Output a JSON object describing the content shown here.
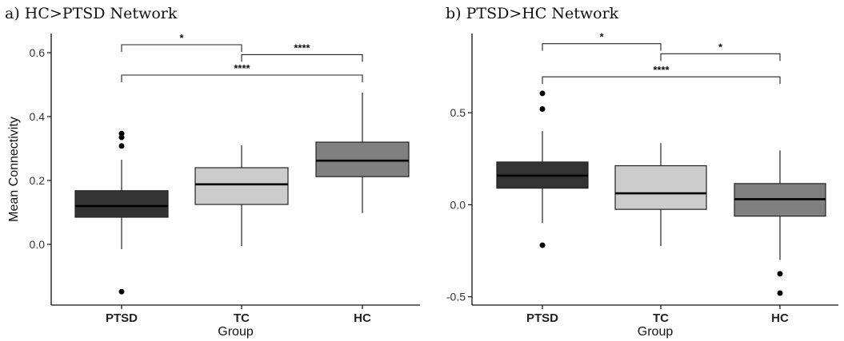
{
  "chart_data": [
    {
      "type": "boxplot",
      "title": "a) HC>PTSD Network",
      "xlabel": "Group",
      "ylabel": "Mean Connectivity",
      "categories": [
        "PTSD",
        "TC",
        "HC"
      ],
      "colors": [
        "#333333",
        "#cccccc",
        "#808080"
      ],
      "ylim": [
        -0.19,
        0.66
      ],
      "yticks": [
        0.0,
        0.2,
        0.4,
        0.6
      ],
      "ytick_labels": [
        "0.0",
        "0.2",
        "0.4",
        "0.6"
      ],
      "grid": false,
      "boxes": [
        {
          "group": "PTSD",
          "whisker_low": -0.015,
          "q1": 0.085,
          "median": 0.12,
          "q3": 0.168,
          "whisker_high": 0.265,
          "outliers": [
            -0.148,
            0.308,
            0.335,
            0.347
          ]
        },
        {
          "group": "TC",
          "whisker_low": -0.005,
          "q1": 0.125,
          "median": 0.188,
          "q3": 0.24,
          "whisker_high": 0.31,
          "outliers": []
        },
        {
          "group": "HC",
          "whisker_low": 0.098,
          "q1": 0.212,
          "median": 0.262,
          "q3": 0.32,
          "whisker_high": 0.475,
          "outliers": []
        }
      ],
      "significance": [
        {
          "from": "PTSD",
          "to": "TC",
          "y": 0.625,
          "label": "*"
        },
        {
          "from": "TC",
          "to": "HC",
          "y": 0.594,
          "label": "****"
        },
        {
          "from": "PTSD",
          "to": "HC",
          "y": 0.53,
          "label": "****"
        }
      ]
    },
    {
      "type": "boxplot",
      "title": "b) PTSD>HC Network",
      "xlabel": "Group",
      "ylabel": "",
      "categories": [
        "PTSD",
        "TC",
        "HC"
      ],
      "colors": [
        "#333333",
        "#cccccc",
        "#808080"
      ],
      "ylim": [
        -0.545,
        0.93
      ],
      "yticks": [
        -0.5,
        0.0,
        0.5
      ],
      "ytick_labels": [
        "-0.5",
        "0.0",
        "0.5"
      ],
      "grid": false,
      "boxes": [
        {
          "group": "PTSD",
          "whisker_low": -0.1,
          "q1": 0.09,
          "median": 0.158,
          "q3": 0.232,
          "whisker_high": 0.4,
          "outliers": [
            -0.22,
            0.52,
            0.605
          ]
        },
        {
          "group": "TC",
          "whisker_low": -0.225,
          "q1": -0.025,
          "median": 0.062,
          "q3": 0.212,
          "whisker_high": 0.335,
          "outliers": []
        },
        {
          "group": "HC",
          "whisker_low": -0.3,
          "q1": -0.062,
          "median": 0.03,
          "q3": 0.115,
          "whisker_high": 0.295,
          "outliers": [
            -0.375,
            -0.48
          ]
        }
      ],
      "significance": [
        {
          "from": "PTSD",
          "to": "TC",
          "y": 0.875,
          "label": "*"
        },
        {
          "from": "TC",
          "to": "HC",
          "y": 0.82,
          "label": "*"
        },
        {
          "from": "PTSD",
          "to": "HC",
          "y": 0.695,
          "label": "****"
        }
      ]
    }
  ]
}
